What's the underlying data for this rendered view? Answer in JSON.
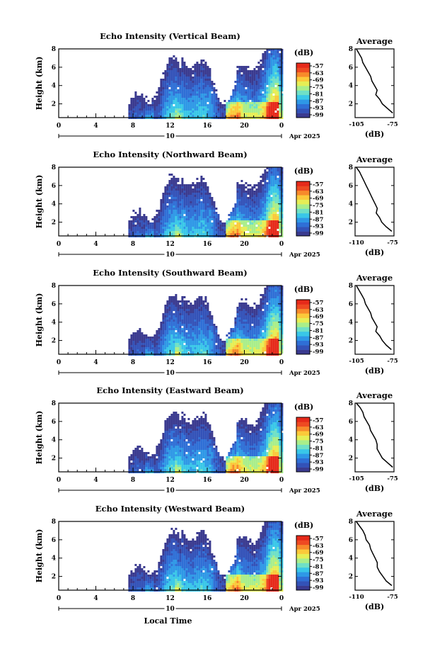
{
  "colors": {
    "scale": [
      "#3a3a8f",
      "#3352b8",
      "#2f6fd6",
      "#2e98e6",
      "#39c7e8",
      "#6fe0c6",
      "#a9ee8a",
      "#e6ee55",
      "#fbc93a",
      "#f78a2b",
      "#ee4a22",
      "#e62a1a"
    ]
  },
  "colorbar": {
    "unit": "(dB)",
    "labels": [
      "-57",
      "-63",
      "-69",
      "-75",
      "-81",
      "-87",
      "-93",
      "-99"
    ]
  },
  "shared": {
    "x_ticks": [
      "0",
      "4",
      "8",
      "12",
      "16",
      "20",
      "0"
    ],
    "date_day": "10",
    "date_label": "Apr 2025",
    "y_ticks": [
      "2",
      "4",
      "6",
      "8"
    ],
    "ylabel": "Height (km)",
    "xlabel": "Local Time",
    "avg_xlabel": "(dB)",
    "avg_title": "Average"
  },
  "chart_data": [
    {
      "type": "heatmap",
      "title": "Echo Intensity (Vertical Beam)",
      "ylabel": "Height (km)",
      "x_range": [
        0,
        24
      ],
      "ylim": [
        0.5,
        8
      ],
      "data_start_hour": 7.5,
      "average": {
        "xlim": [
          -105,
          -75
        ],
        "x_ticks": [
          "-105",
          "-75"
        ],
        "heights": [
          8,
          7.5,
          7,
          6.5,
          6,
          5.5,
          5,
          4.5,
          4,
          3.5,
          3,
          2.5,
          2,
          1.5,
          1
        ],
        "values": [
          -104,
          -102,
          -100,
          -99,
          -97,
          -95,
          -93,
          -92,
          -90,
          -88,
          -89,
          -86,
          -84,
          -80,
          -76
        ]
      }
    },
    {
      "type": "heatmap",
      "title": "Echo Intensity (Northward Beam)",
      "ylabel": "Height (km)",
      "x_range": [
        0,
        24
      ],
      "ylim": [
        0.5,
        8
      ],
      "data_start_hour": 7.5,
      "average": {
        "xlim": [
          -110,
          -75
        ],
        "x_ticks": [
          "-110",
          "-75"
        ],
        "heights": [
          8,
          7.5,
          7,
          6.5,
          6,
          5.5,
          5,
          4.5,
          4,
          3.5,
          3,
          2.5,
          2,
          1.5,
          1
        ],
        "values": [
          -109,
          -106,
          -104,
          -102,
          -100,
          -98,
          -96,
          -94,
          -92,
          -90,
          -91,
          -88,
          -86,
          -82,
          -77
        ]
      }
    },
    {
      "type": "heatmap",
      "title": "Echo Intensity (Southward Beam)",
      "ylabel": "Height (km)",
      "x_range": [
        0,
        24
      ],
      "ylim": [
        0.5,
        8
      ],
      "data_start_hour": 7.5,
      "average": {
        "xlim": [
          -105,
          -75
        ],
        "x_ticks": [
          "-105",
          "-75"
        ],
        "heights": [
          8,
          7.5,
          7,
          6.5,
          6,
          5.5,
          5,
          4.5,
          4,
          3.5,
          3,
          2.5,
          2,
          1.5,
          1
        ],
        "values": [
          -104,
          -102,
          -100,
          -98,
          -97,
          -95,
          -93,
          -92,
          -90,
          -88,
          -89,
          -86,
          -84,
          -81,
          -77
        ]
      }
    },
    {
      "type": "heatmap",
      "title": "Echo Intensity (Eastward Beam)",
      "ylabel": "Height (km)",
      "x_range": [
        0,
        24
      ],
      "ylim": [
        0.5,
        8
      ],
      "data_start_hour": 7.5,
      "average": {
        "xlim": [
          -105,
          -75
        ],
        "x_ticks": [
          "-105",
          "-75"
        ],
        "heights": [
          8,
          7.5,
          7,
          6.5,
          6,
          5.5,
          5,
          4.5,
          4,
          3.5,
          3,
          2.5,
          2,
          1.5,
          1
        ],
        "values": [
          -104,
          -101,
          -99,
          -98,
          -96,
          -94,
          -93,
          -91,
          -89,
          -88,
          -88,
          -86,
          -84,
          -80,
          -76
        ]
      }
    },
    {
      "type": "heatmap",
      "title": "Echo Intensity (Westward Beam)",
      "ylabel": "Height (km)",
      "x_range": [
        0,
        24
      ],
      "ylim": [
        0.5,
        8
      ],
      "data_start_hour": 7.5,
      "average": {
        "xlim": [
          -110,
          -75
        ],
        "x_ticks": [
          "-110",
          "-75"
        ],
        "heights": [
          8,
          7.5,
          7,
          6.5,
          6,
          5.5,
          5,
          4.5,
          4,
          3.5,
          3,
          2.5,
          2,
          1.5,
          1
        ],
        "values": [
          -109,
          -106,
          -103,
          -101,
          -100,
          -97,
          -96,
          -94,
          -92,
          -90,
          -90,
          -88,
          -85,
          -82,
          -77
        ]
      }
    }
  ]
}
